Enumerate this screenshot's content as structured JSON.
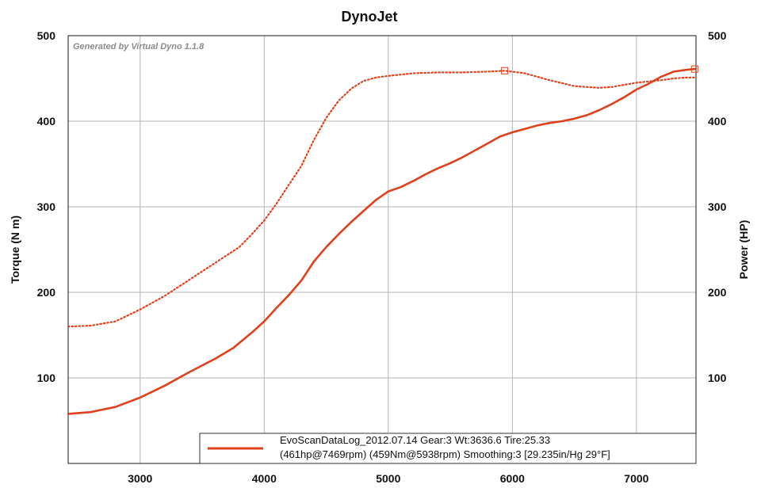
{
  "chart_data": {
    "type": "line",
    "title": "DynoJet",
    "watermark": "Generated by Virtual Dyno 1.1.8",
    "ylabel_left": "Torque (N m)",
    "ylabel_right": "Power (HP)",
    "xlim": [
      2420,
      7480
    ],
    "ylim": [
      0,
      500
    ],
    "x_ticks": [
      "3000",
      "4000",
      "5000",
      "6000",
      "7000"
    ],
    "x_tick_values": [
      3000,
      4000,
      5000,
      6000,
      7000
    ],
    "y_ticks": [
      "100",
      "200",
      "300",
      "400",
      "500"
    ],
    "y_tick_values": [
      100,
      200,
      300,
      400,
      500
    ],
    "grid": true,
    "legend_placement": "bottom-right",
    "legend_lines": [
      "EvoScanDataLog_2012.07.14 Gear:3 Wt:3636.6 Tire:25.33",
      "(461hp@7469rpm) (459Nm@5938rpm) Smoothing:3 [29.235in/Hg 29°F]"
    ],
    "series": [
      {
        "key": "power",
        "style": "solid",
        "axis": "right",
        "color": "#e0401c",
        "x": [
          2420,
          2600,
          2800,
          3000,
          3200,
          3400,
          3600,
          3750,
          3900,
          4000,
          4100,
          4200,
          4300,
          4400,
          4500,
          4600,
          4700,
          4800,
          4900,
          5000,
          5100,
          5200,
          5300,
          5400,
          5500,
          5600,
          5700,
          5800,
          5900,
          6000,
          6100,
          6200,
          6300,
          6400,
          6500,
          6600,
          6700,
          6800,
          6900,
          7000,
          7100,
          7200,
          7300,
          7400,
          7469
        ],
        "values": [
          58,
          60,
          66,
          77,
          91,
          107,
          122,
          135,
          153,
          166,
          182,
          197,
          214,
          236,
          253,
          268,
          282,
          295,
          308,
          318,
          323,
          330,
          338,
          345,
          351,
          358,
          366,
          374,
          382,
          387,
          391,
          395,
          398,
          400,
          403,
          407,
          413,
          420,
          428,
          437,
          444,
          452,
          458,
          460,
          461
        ]
      },
      {
        "key": "torque",
        "style": "dotted",
        "axis": "left",
        "color": "#e0401c",
        "x": [
          2420,
          2600,
          2800,
          3000,
          3200,
          3400,
          3600,
          3800,
          3900,
          4000,
          4100,
          4200,
          4300,
          4400,
          4500,
          4600,
          4700,
          4800,
          4900,
          5000,
          5200,
          5400,
          5600,
          5800,
          5938,
          6100,
          6300,
          6500,
          6700,
          6800,
          7000,
          7200,
          7300,
          7400,
          7480
        ],
        "values": [
          160,
          161,
          166,
          180,
          196,
          215,
          234,
          253,
          268,
          284,
          304,
          326,
          348,
          378,
          404,
          424,
          438,
          447,
          451,
          453,
          456,
          457,
          457,
          458,
          459,
          456,
          448,
          441,
          439,
          440,
          445,
          448,
          450,
          451,
          451
        ]
      }
    ],
    "markers": [
      {
        "series": "torque",
        "x": 5938,
        "y": 459
      },
      {
        "series": "power",
        "x": 7469,
        "y": 461
      }
    ]
  }
}
